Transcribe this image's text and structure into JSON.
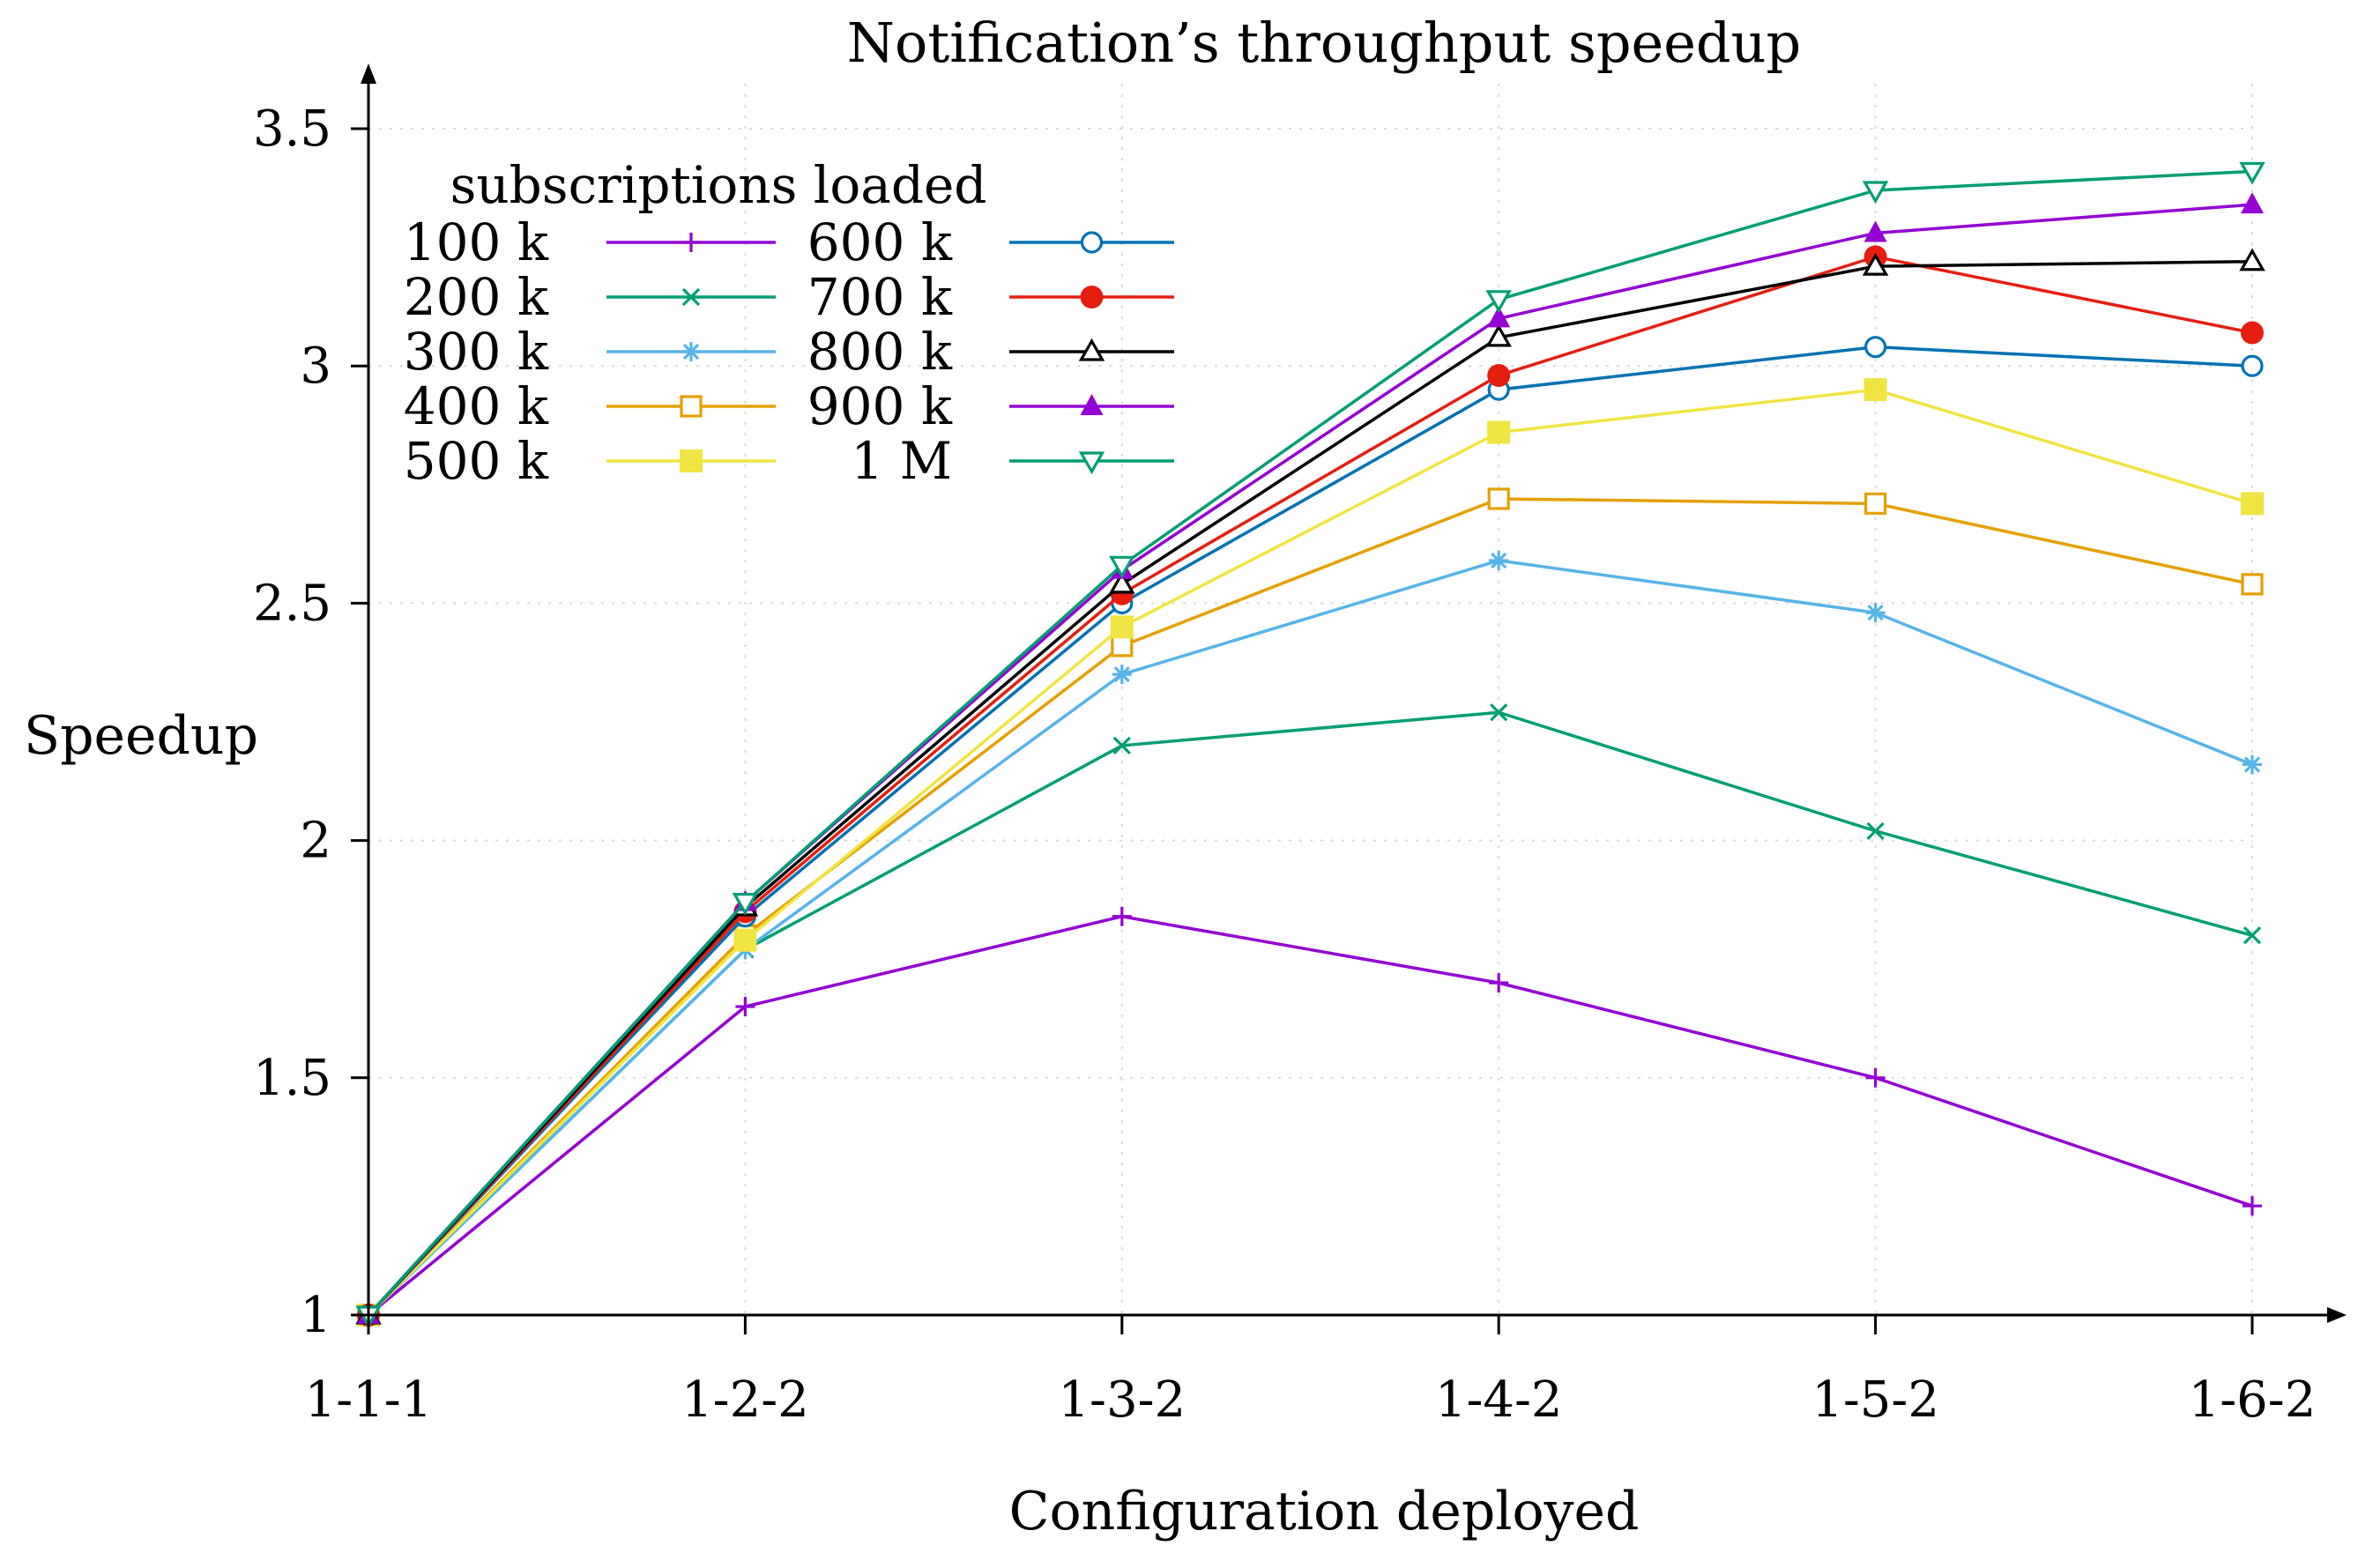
{
  "chart_data": {
    "type": "line",
    "title": "Notification’s throughput speedup",
    "xlabel": "Configuration deployed",
    "ylabel": "Speedup",
    "categories": [
      "1-1-1",
      "1-2-2",
      "1-3-2",
      "1-4-2",
      "1-5-2",
      "1-6-2"
    ],
    "ylim": [
      0.95,
      3.6
    ],
    "yticks": [
      1,
      1.5,
      2,
      2.5,
      3,
      3.5
    ],
    "ytick_labels": [
      "1",
      "1.5",
      "2",
      "2.5",
      "3",
      "3.5"
    ],
    "grid": true,
    "legend": {
      "title": "subscriptions loaded",
      "position": "top-left"
    },
    "series": [
      {
        "name": "100 k",
        "color": "#9400d3",
        "marker": "plus",
        "values": [
          1.0,
          1.65,
          1.84,
          1.7,
          1.5,
          1.23
        ]
      },
      {
        "name": "200 k",
        "color": "#009e73",
        "marker": "cross",
        "values": [
          1.0,
          1.77,
          2.2,
          2.27,
          2.02,
          1.8
        ]
      },
      {
        "name": "300 k",
        "color": "#56b4e9",
        "marker": "star",
        "values": [
          1.0,
          1.77,
          2.35,
          2.59,
          2.48,
          2.16
        ]
      },
      {
        "name": "400 k",
        "color": "#e69f00",
        "marker": "square-open",
        "values": [
          1.0,
          1.8,
          2.41,
          2.72,
          2.71,
          2.54
        ]
      },
      {
        "name": "500 k",
        "color": "#f0e442",
        "marker": "square-filled",
        "values": [
          1.0,
          1.79,
          2.45,
          2.86,
          2.95,
          2.71
        ]
      },
      {
        "name": "600 k",
        "color": "#0072b2",
        "marker": "circle-open",
        "values": [
          1.0,
          1.84,
          2.5,
          2.95,
          3.04,
          3.0
        ]
      },
      {
        "name": "700 k",
        "color": "#e51e10",
        "marker": "circle-filled",
        "values": [
          1.0,
          1.85,
          2.52,
          2.98,
          3.23,
          3.07
        ]
      },
      {
        "name": "800 k",
        "color": "#000000",
        "marker": "triangle-open",
        "values": [
          1.0,
          1.86,
          2.54,
          3.06,
          3.21,
          3.22
        ]
      },
      {
        "name": "900 k",
        "color": "#9400d3",
        "marker": "triangle-filled",
        "values": [
          1.0,
          1.87,
          2.57,
          3.1,
          3.28,
          3.34
        ]
      },
      {
        "name": "1 M",
        "color": "#009e73",
        "marker": "triangle-down",
        "values": [
          1.0,
          1.87,
          2.58,
          3.14,
          3.37,
          3.41
        ]
      }
    ]
  }
}
